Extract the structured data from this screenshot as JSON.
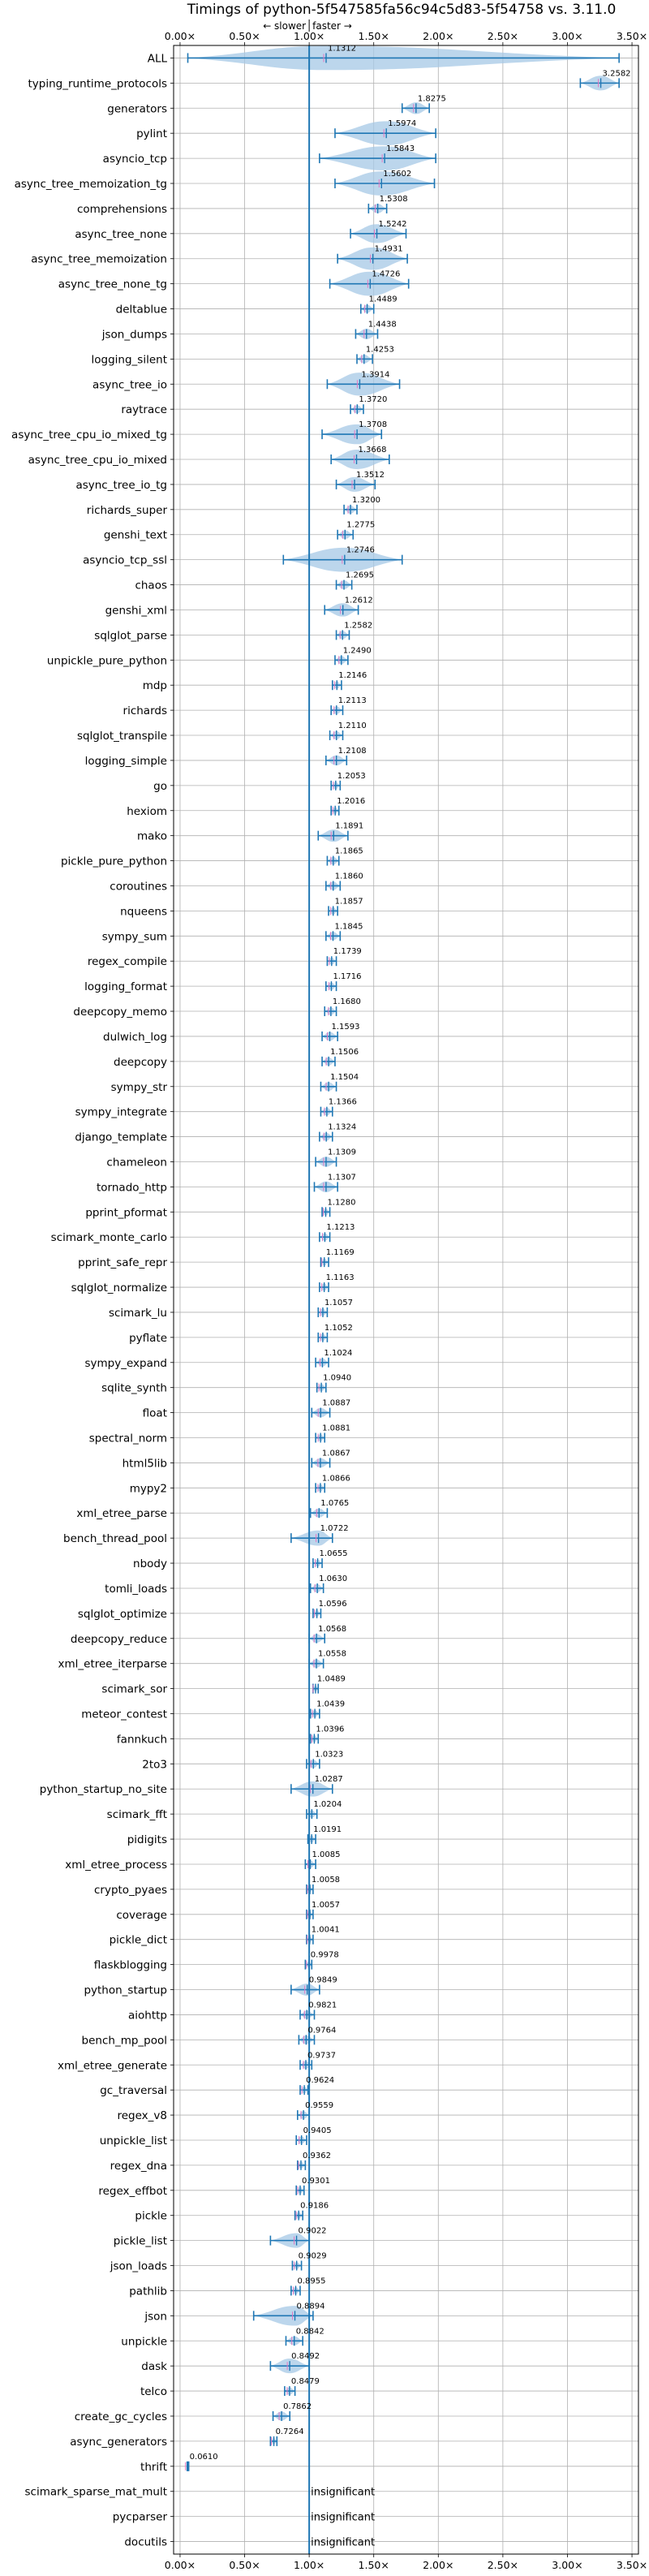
{
  "chart_data": {
    "type": "violin",
    "title": "Timings of python-5f547585fa56c94c5d83-5f54758 vs. 3.11.0",
    "annotation_slower": "← slower",
    "annotation_faster": "faster →",
    "xlim": [
      -0.05,
      3.55
    ],
    "xticks": [
      0.0,
      0.5,
      1.0,
      1.5,
      2.0,
      2.5,
      3.0,
      3.5
    ],
    "xtick_labels": [
      "0.00×",
      "0.50×",
      "1.00×",
      "1.50×",
      "2.00×",
      "2.50×",
      "3.00×",
      "3.50×"
    ],
    "grid": true,
    "reference_line": 1.0,
    "insignificant_label": "insignificant",
    "colors": {
      "violin": "#a6c8e6",
      "line": "#1f77b4",
      "median": "#e377c2",
      "grid": "#b0b0b0"
    },
    "benchmarks": [
      {
        "name": "ALL",
        "value": "1.1312",
        "mean": 1.1312,
        "lo": 0.06,
        "hi": 3.4
      },
      {
        "name": "typing_runtime_protocols",
        "value": "3.2582",
        "mean": 3.2582,
        "lo": 3.1,
        "hi": 3.4
      },
      {
        "name": "generators",
        "value": "1.8275",
        "mean": 1.8275,
        "lo": 1.72,
        "hi": 1.93
      },
      {
        "name": "pylint",
        "value": "1.5974",
        "mean": 1.5974,
        "lo": 1.2,
        "hi": 1.98
      },
      {
        "name": "asyncio_tcp",
        "value": "1.5843",
        "mean": 1.5843,
        "lo": 1.08,
        "hi": 1.98
      },
      {
        "name": "async_tree_memoization_tg",
        "value": "1.5602",
        "mean": 1.5602,
        "lo": 1.2,
        "hi": 1.97
      },
      {
        "name": "comprehensions",
        "value": "1.5308",
        "mean": 1.5308,
        "lo": 1.46,
        "hi": 1.6
      },
      {
        "name": "async_tree_none",
        "value": "1.5242",
        "mean": 1.5242,
        "lo": 1.32,
        "hi": 1.75
      },
      {
        "name": "async_tree_memoization",
        "value": "1.4931",
        "mean": 1.4931,
        "lo": 1.22,
        "hi": 1.76
      },
      {
        "name": "async_tree_none_tg",
        "value": "1.4726",
        "mean": 1.4726,
        "lo": 1.16,
        "hi": 1.77
      },
      {
        "name": "deltablue",
        "value": "1.4489",
        "mean": 1.4489,
        "lo": 1.4,
        "hi": 1.5
      },
      {
        "name": "json_dumps",
        "value": "1.4438",
        "mean": 1.4438,
        "lo": 1.36,
        "hi": 1.53
      },
      {
        "name": "logging_silent",
        "value": "1.4253",
        "mean": 1.4253,
        "lo": 1.37,
        "hi": 1.49
      },
      {
        "name": "async_tree_io",
        "value": "1.3914",
        "mean": 1.3914,
        "lo": 1.14,
        "hi": 1.7
      },
      {
        "name": "raytrace",
        "value": "1.3720",
        "mean": 1.372,
        "lo": 1.32,
        "hi": 1.42
      },
      {
        "name": "async_tree_cpu_io_mixed_tg",
        "value": "1.3708",
        "mean": 1.3708,
        "lo": 1.1,
        "hi": 1.56
      },
      {
        "name": "async_tree_cpu_io_mixed",
        "value": "1.3668",
        "mean": 1.3668,
        "lo": 1.17,
        "hi": 1.62
      },
      {
        "name": "async_tree_io_tg",
        "value": "1.3512",
        "mean": 1.3512,
        "lo": 1.21,
        "hi": 1.51
      },
      {
        "name": "richards_super",
        "value": "1.3200",
        "mean": 1.32,
        "lo": 1.27,
        "hi": 1.37
      },
      {
        "name": "genshi_text",
        "value": "1.2775",
        "mean": 1.2775,
        "lo": 1.22,
        "hi": 1.34
      },
      {
        "name": "asyncio_tcp_ssl",
        "value": "1.2746",
        "mean": 1.2746,
        "lo": 0.8,
        "hi": 1.72
      },
      {
        "name": "chaos",
        "value": "1.2695",
        "mean": 1.2695,
        "lo": 1.21,
        "hi": 1.33
      },
      {
        "name": "genshi_xml",
        "value": "1.2612",
        "mean": 1.2612,
        "lo": 1.12,
        "hi": 1.38
      },
      {
        "name": "sqlglot_parse",
        "value": "1.2582",
        "mean": 1.2582,
        "lo": 1.21,
        "hi": 1.31
      },
      {
        "name": "unpickle_pure_python",
        "value": "1.2490",
        "mean": 1.249,
        "lo": 1.2,
        "hi": 1.3
      },
      {
        "name": "mdp",
        "value": "1.2146",
        "mean": 1.2146,
        "lo": 1.18,
        "hi": 1.25
      },
      {
        "name": "richards",
        "value": "1.2113",
        "mean": 1.2113,
        "lo": 1.17,
        "hi": 1.26
      },
      {
        "name": "sqlglot_transpile",
        "value": "1.2110",
        "mean": 1.211,
        "lo": 1.16,
        "hi": 1.26
      },
      {
        "name": "logging_simple",
        "value": "1.2108",
        "mean": 1.2108,
        "lo": 1.13,
        "hi": 1.29
      },
      {
        "name": "go",
        "value": "1.2053",
        "mean": 1.2053,
        "lo": 1.17,
        "hi": 1.24
      },
      {
        "name": "hexiom",
        "value": "1.2016",
        "mean": 1.2016,
        "lo": 1.17,
        "hi": 1.23
      },
      {
        "name": "mako",
        "value": "1.1891",
        "mean": 1.1891,
        "lo": 1.07,
        "hi": 1.3
      },
      {
        "name": "pickle_pure_python",
        "value": "1.1865",
        "mean": 1.1865,
        "lo": 1.14,
        "hi": 1.23
      },
      {
        "name": "coroutines",
        "value": "1.1860",
        "mean": 1.186,
        "lo": 1.13,
        "hi": 1.24
      },
      {
        "name": "nqueens",
        "value": "1.1857",
        "mean": 1.1857,
        "lo": 1.15,
        "hi": 1.22
      },
      {
        "name": "sympy_sum",
        "value": "1.1845",
        "mean": 1.1845,
        "lo": 1.13,
        "hi": 1.24
      },
      {
        "name": "regex_compile",
        "value": "1.1739",
        "mean": 1.1739,
        "lo": 1.14,
        "hi": 1.21
      },
      {
        "name": "logging_format",
        "value": "1.1716",
        "mean": 1.1716,
        "lo": 1.13,
        "hi": 1.21
      },
      {
        "name": "deepcopy_memo",
        "value": "1.1680",
        "mean": 1.168,
        "lo": 1.12,
        "hi": 1.21
      },
      {
        "name": "dulwich_log",
        "value": "1.1593",
        "mean": 1.1593,
        "lo": 1.1,
        "hi": 1.22
      },
      {
        "name": "deepcopy",
        "value": "1.1506",
        "mean": 1.1506,
        "lo": 1.1,
        "hi": 1.2
      },
      {
        "name": "sympy_str",
        "value": "1.1504",
        "mean": 1.1504,
        "lo": 1.09,
        "hi": 1.21
      },
      {
        "name": "sympy_integrate",
        "value": "1.1366",
        "mean": 1.1366,
        "lo": 1.09,
        "hi": 1.18
      },
      {
        "name": "django_template",
        "value": "1.1324",
        "mean": 1.1324,
        "lo": 1.08,
        "hi": 1.18
      },
      {
        "name": "chameleon",
        "value": "1.1309",
        "mean": 1.1309,
        "lo": 1.05,
        "hi": 1.21
      },
      {
        "name": "tornado_http",
        "value": "1.1307",
        "mean": 1.1307,
        "lo": 1.04,
        "hi": 1.22
      },
      {
        "name": "pprint_pformat",
        "value": "1.1280",
        "mean": 1.128,
        "lo": 1.1,
        "hi": 1.16
      },
      {
        "name": "scimark_monte_carlo",
        "value": "1.1213",
        "mean": 1.1213,
        "lo": 1.08,
        "hi": 1.16
      },
      {
        "name": "pprint_safe_repr",
        "value": "1.1169",
        "mean": 1.1169,
        "lo": 1.09,
        "hi": 1.15
      },
      {
        "name": "sqlglot_normalize",
        "value": "1.1163",
        "mean": 1.1163,
        "lo": 1.08,
        "hi": 1.15
      },
      {
        "name": "scimark_lu",
        "value": "1.1057",
        "mean": 1.1057,
        "lo": 1.07,
        "hi": 1.14
      },
      {
        "name": "pyflate",
        "value": "1.1052",
        "mean": 1.1052,
        "lo": 1.07,
        "hi": 1.14
      },
      {
        "name": "sympy_expand",
        "value": "1.1024",
        "mean": 1.1024,
        "lo": 1.05,
        "hi": 1.15
      },
      {
        "name": "sqlite_synth",
        "value": "1.0940",
        "mean": 1.094,
        "lo": 1.06,
        "hi": 1.13
      },
      {
        "name": "float",
        "value": "1.0887",
        "mean": 1.0887,
        "lo": 1.02,
        "hi": 1.16
      },
      {
        "name": "spectral_norm",
        "value": "1.0881",
        "mean": 1.0881,
        "lo": 1.05,
        "hi": 1.12
      },
      {
        "name": "html5lib",
        "value": "1.0867",
        "mean": 1.0867,
        "lo": 1.02,
        "hi": 1.16
      },
      {
        "name": "mypy2",
        "value": "1.0866",
        "mean": 1.0866,
        "lo": 1.05,
        "hi": 1.12
      },
      {
        "name": "xml_etree_parse",
        "value": "1.0765",
        "mean": 1.0765,
        "lo": 1.01,
        "hi": 1.14
      },
      {
        "name": "bench_thread_pool",
        "value": "1.0722",
        "mean": 1.0722,
        "lo": 0.86,
        "hi": 1.18
      },
      {
        "name": "nbody",
        "value": "1.0655",
        "mean": 1.0655,
        "lo": 1.03,
        "hi": 1.1
      },
      {
        "name": "tomli_loads",
        "value": "1.0630",
        "mean": 1.063,
        "lo": 1.01,
        "hi": 1.11
      },
      {
        "name": "sqlglot_optimize",
        "value": "1.0596",
        "mean": 1.0596,
        "lo": 1.03,
        "hi": 1.09
      },
      {
        "name": "deepcopy_reduce",
        "value": "1.0568",
        "mean": 1.0568,
        "lo": 1.0,
        "hi": 1.12
      },
      {
        "name": "xml_etree_iterparse",
        "value": "1.0558",
        "mean": 1.0558,
        "lo": 1.0,
        "hi": 1.11
      },
      {
        "name": "scimark_sor",
        "value": "1.0489",
        "mean": 1.0489,
        "lo": 1.03,
        "hi": 1.07
      },
      {
        "name": "meteor_contest",
        "value": "1.0439",
        "mean": 1.0439,
        "lo": 1.01,
        "hi": 1.08
      },
      {
        "name": "fannkuch",
        "value": "1.0396",
        "mean": 1.0396,
        "lo": 1.01,
        "hi": 1.07
      },
      {
        "name": "2to3",
        "value": "1.0323",
        "mean": 1.0323,
        "lo": 0.98,
        "hi": 1.08
      },
      {
        "name": "python_startup_no_site",
        "value": "1.0287",
        "mean": 1.0287,
        "lo": 0.86,
        "hi": 1.18
      },
      {
        "name": "scimark_fft",
        "value": "1.0204",
        "mean": 1.0204,
        "lo": 0.98,
        "hi": 1.06
      },
      {
        "name": "pidigits",
        "value": "1.0191",
        "mean": 1.0191,
        "lo": 0.99,
        "hi": 1.05
      },
      {
        "name": "xml_etree_process",
        "value": "1.0085",
        "mean": 1.0085,
        "lo": 0.97,
        "hi": 1.05
      },
      {
        "name": "crypto_pyaes",
        "value": "1.0058",
        "mean": 1.0058,
        "lo": 0.98,
        "hi": 1.03
      },
      {
        "name": "coverage",
        "value": "1.0057",
        "mean": 1.0057,
        "lo": 0.98,
        "hi": 1.03
      },
      {
        "name": "pickle_dict",
        "value": "1.0041",
        "mean": 1.0041,
        "lo": 0.98,
        "hi": 1.03
      },
      {
        "name": "flaskblogging",
        "value": "0.9978",
        "mean": 0.9978,
        "lo": 0.97,
        "hi": 1.02
      },
      {
        "name": "python_startup",
        "value": "0.9849",
        "mean": 0.9849,
        "lo": 0.86,
        "hi": 1.08
      },
      {
        "name": "aiohttp",
        "value": "0.9821",
        "mean": 0.9821,
        "lo": 0.93,
        "hi": 1.04
      },
      {
        "name": "bench_mp_pool",
        "value": "0.9764",
        "mean": 0.9764,
        "lo": 0.92,
        "hi": 1.04
      },
      {
        "name": "xml_etree_generate",
        "value": "0.9737",
        "mean": 0.9737,
        "lo": 0.93,
        "hi": 1.02
      },
      {
        "name": "gc_traversal",
        "value": "0.9624",
        "mean": 0.9624,
        "lo": 0.93,
        "hi": 0.99
      },
      {
        "name": "regex_v8",
        "value": "0.9559",
        "mean": 0.9559,
        "lo": 0.91,
        "hi": 1.0
      },
      {
        "name": "unpickle_list",
        "value": "0.9405",
        "mean": 0.9405,
        "lo": 0.9,
        "hi": 0.98
      },
      {
        "name": "regex_dna",
        "value": "0.9362",
        "mean": 0.9362,
        "lo": 0.91,
        "hi": 0.97
      },
      {
        "name": "regex_effbot",
        "value": "0.9301",
        "mean": 0.9301,
        "lo": 0.9,
        "hi": 0.96
      },
      {
        "name": "pickle",
        "value": "0.9186",
        "mean": 0.9186,
        "lo": 0.89,
        "hi": 0.95
      },
      {
        "name": "pickle_list",
        "value": "0.9022",
        "mean": 0.9022,
        "lo": 0.7,
        "hi": 1.0
      },
      {
        "name": "json_loads",
        "value": "0.9029",
        "mean": 0.9029,
        "lo": 0.87,
        "hi": 0.94
      },
      {
        "name": "pathlib",
        "value": "0.8955",
        "mean": 0.8955,
        "lo": 0.86,
        "hi": 0.93
      },
      {
        "name": "json",
        "value": "0.8894",
        "mean": 0.8894,
        "lo": 0.57,
        "hi": 1.03
      },
      {
        "name": "unpickle",
        "value": "0.8842",
        "mean": 0.8842,
        "lo": 0.82,
        "hi": 0.95
      },
      {
        "name": "dask",
        "value": "0.8492",
        "mean": 0.8492,
        "lo": 0.7,
        "hi": 1.0
      },
      {
        "name": "telco",
        "value": "0.8479",
        "mean": 0.8479,
        "lo": 0.81,
        "hi": 0.89
      },
      {
        "name": "create_gc_cycles",
        "value": "0.7862",
        "mean": 0.7862,
        "lo": 0.72,
        "hi": 0.85
      },
      {
        "name": "async_generators",
        "value": "0.7264",
        "mean": 0.7264,
        "lo": 0.7,
        "hi": 0.75
      },
      {
        "name": "thrift",
        "value": "0.0610",
        "mean": 0.061,
        "lo": 0.055,
        "hi": 0.067
      },
      {
        "name": "scimark_sparse_mat_mult",
        "value": "insignificant",
        "mean": null,
        "lo": null,
        "hi": null
      },
      {
        "name": "pycparser",
        "value": "insignificant",
        "mean": null,
        "lo": null,
        "hi": null
      },
      {
        "name": "docutils",
        "value": "insignificant",
        "mean": null,
        "lo": null,
        "hi": null
      }
    ]
  }
}
